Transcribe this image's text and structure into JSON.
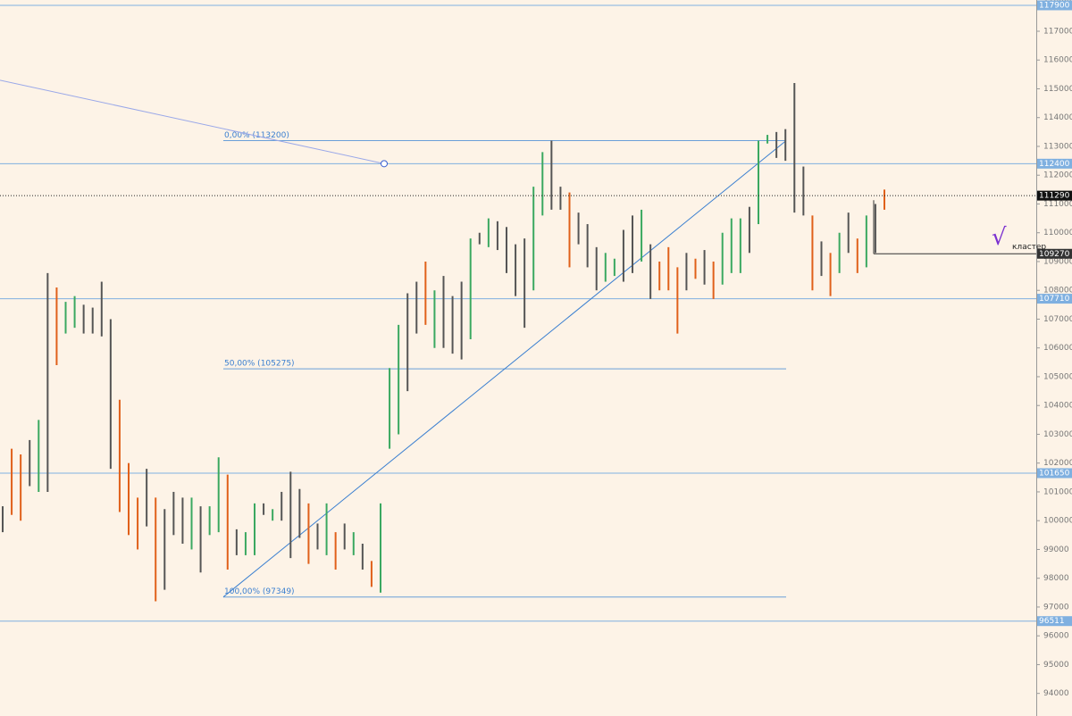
{
  "chart_data": {
    "type": "hl_bars",
    "ylim": [
      93215,
      118085
    ],
    "yticks": [
      94000,
      95000,
      96000,
      97000,
      98000,
      99000,
      100000,
      101000,
      102000,
      103000,
      104000,
      105000,
      106000,
      107000,
      108000,
      109000,
      110000,
      111000,
      112000,
      113000,
      114000,
      115000,
      116000,
      117000,
      118000
    ],
    "high": [
      100500,
      102500,
      102300,
      102800,
      103500,
      108600,
      108100,
      107600,
      107800,
      107500,
      107400,
      108300,
      107000,
      104200,
      102000,
      100800,
      101800,
      100800,
      100400,
      101000,
      100800,
      100800,
      100500,
      100500,
      102200,
      101600,
      99700,
      99600,
      100600,
      100600,
      100400,
      101000,
      101700,
      101100,
      100600,
      99900,
      100600,
      99600,
      99900,
      99600,
      99200,
      98600,
      100600,
      105300,
      106800,
      107900,
      108300,
      109000,
      108000,
      108500,
      107800,
      108300,
      109800,
      110000,
      110500,
      110400,
      110200,
      109600,
      109800,
      111600,
      112800,
      113200,
      111600,
      111400,
      110700,
      110300,
      109500,
      109300,
      109100,
      110100,
      110600,
      110800,
      109600,
      109000,
      109500,
      108800,
      109300,
      109100,
      109400,
      109000,
      110000,
      110500,
      110500,
      110900,
      113200,
      113400,
      113500,
      113600,
      115200,
      112300,
      110600,
      109700,
      109300,
      110000,
      110700,
      109800,
      110600,
      111000,
      111500
    ],
    "low": [
      99600,
      100200,
      100000,
      101200,
      101000,
      101000,
      105400,
      106500,
      106700,
      106500,
      106500,
      106400,
      101800,
      100300,
      99500,
      99000,
      99800,
      97200,
      97600,
      99500,
      99200,
      99000,
      98200,
      99500,
      99600,
      98300,
      98800,
      98800,
      98800,
      100200,
      100000,
      100000,
      98700,
      99400,
      98500,
      99000,
      98800,
      98300,
      99000,
      98800,
      98300,
      97700,
      97500,
      102500,
      103000,
      104500,
      106500,
      106800,
      106000,
      106000,
      105800,
      105600,
      106300,
      109600,
      109500,
      109400,
      108600,
      107800,
      106700,
      108000,
      110600,
      110800,
      110800,
      108800,
      109600,
      108800,
      108000,
      108300,
      108500,
      108300,
      108600,
      109000,
      107700,
      108000,
      108000,
      106500,
      108000,
      108400,
      108200,
      107700,
      108200,
      108600,
      108600,
      109300,
      110300,
      113100,
      112600,
      112500,
      110700,
      110600,
      108000,
      108500,
      107800,
      108600,
      109300,
      108600,
      108800,
      109300,
      110800
    ],
    "bar_colors": [
      "#555555",
      "#e0601a",
      "#e0601a",
      "#555555",
      "#3aa860",
      "#555555",
      "#e0601a",
      "#3aa860",
      "#3aa860",
      "#555555",
      "#555555",
      "#555555",
      "#555555",
      "#e0601a",
      "#e0601a",
      "#e0601a",
      "#555555",
      "#e0601a",
      "#555555",
      "#555555",
      "#555555",
      "#3aa860",
      "#555555",
      "#3aa860",
      "#3aa860",
      "#e0601a",
      "#555555",
      "#3aa860",
      "#3aa860",
      "#555555",
      "#3aa860",
      "#555555",
      "#555555",
      "#555555",
      "#e0601a",
      "#555555",
      "#3aa860",
      "#e0601a",
      "#555555",
      "#3aa860",
      "#555555",
      "#e0601a",
      "#3aa860",
      "#3aa860",
      "#3aa860",
      "#555555",
      "#555555",
      "#e0601a",
      "#3aa860",
      "#555555",
      "#555555",
      "#555555",
      "#3aa860",
      "#555555",
      "#3aa860",
      "#555555",
      "#555555",
      "#555555",
      "#555555",
      "#3aa860",
      "#3aa860",
      "#555555",
      "#555555",
      "#e0601a",
      "#555555",
      "#555555",
      "#555555",
      "#3aa860",
      "#3aa860",
      "#555555",
      "#555555",
      "#3aa860",
      "#555555",
      "#e0601a",
      "#e0601a",
      "#e0601a",
      "#555555",
      "#e0601a",
      "#555555",
      "#e0601a",
      "#3aa860",
      "#3aa860",
      "#3aa860",
      "#555555",
      "#3aa860",
      "#3aa860",
      "#555555",
      "#555555",
      "#555555",
      "#555555",
      "#e0601a",
      "#555555",
      "#e0601a",
      "#3aa860",
      "#555555",
      "#e0601a",
      "#3aa860",
      "#555555",
      "#e0601a"
    ],
    "levels": [
      {
        "value": 117900,
        "label": "117900"
      },
      {
        "value": 112400,
        "label": "112400"
      },
      {
        "value": 107710,
        "label": "107710"
      },
      {
        "value": 101650,
        "label": "101650"
      },
      {
        "value": 96511,
        "label": "96511"
      }
    ],
    "level_color": "#7fb0e0",
    "current_price": {
      "value": 111290,
      "label": "111290"
    },
    "fibonacci": [
      {
        "value": 113200,
        "label": "0,00% (113200)"
      },
      {
        "value": 105275,
        "label": "50,00% (105275)"
      },
      {
        "value": 97349,
        "label": "100,00% (97349)"
      }
    ],
    "ray": {
      "from": 115300,
      "to": 112400
    },
    "cluster": {
      "value": 109270,
      "label": "109270",
      "text": "кластер",
      "mark": "√"
    }
  }
}
